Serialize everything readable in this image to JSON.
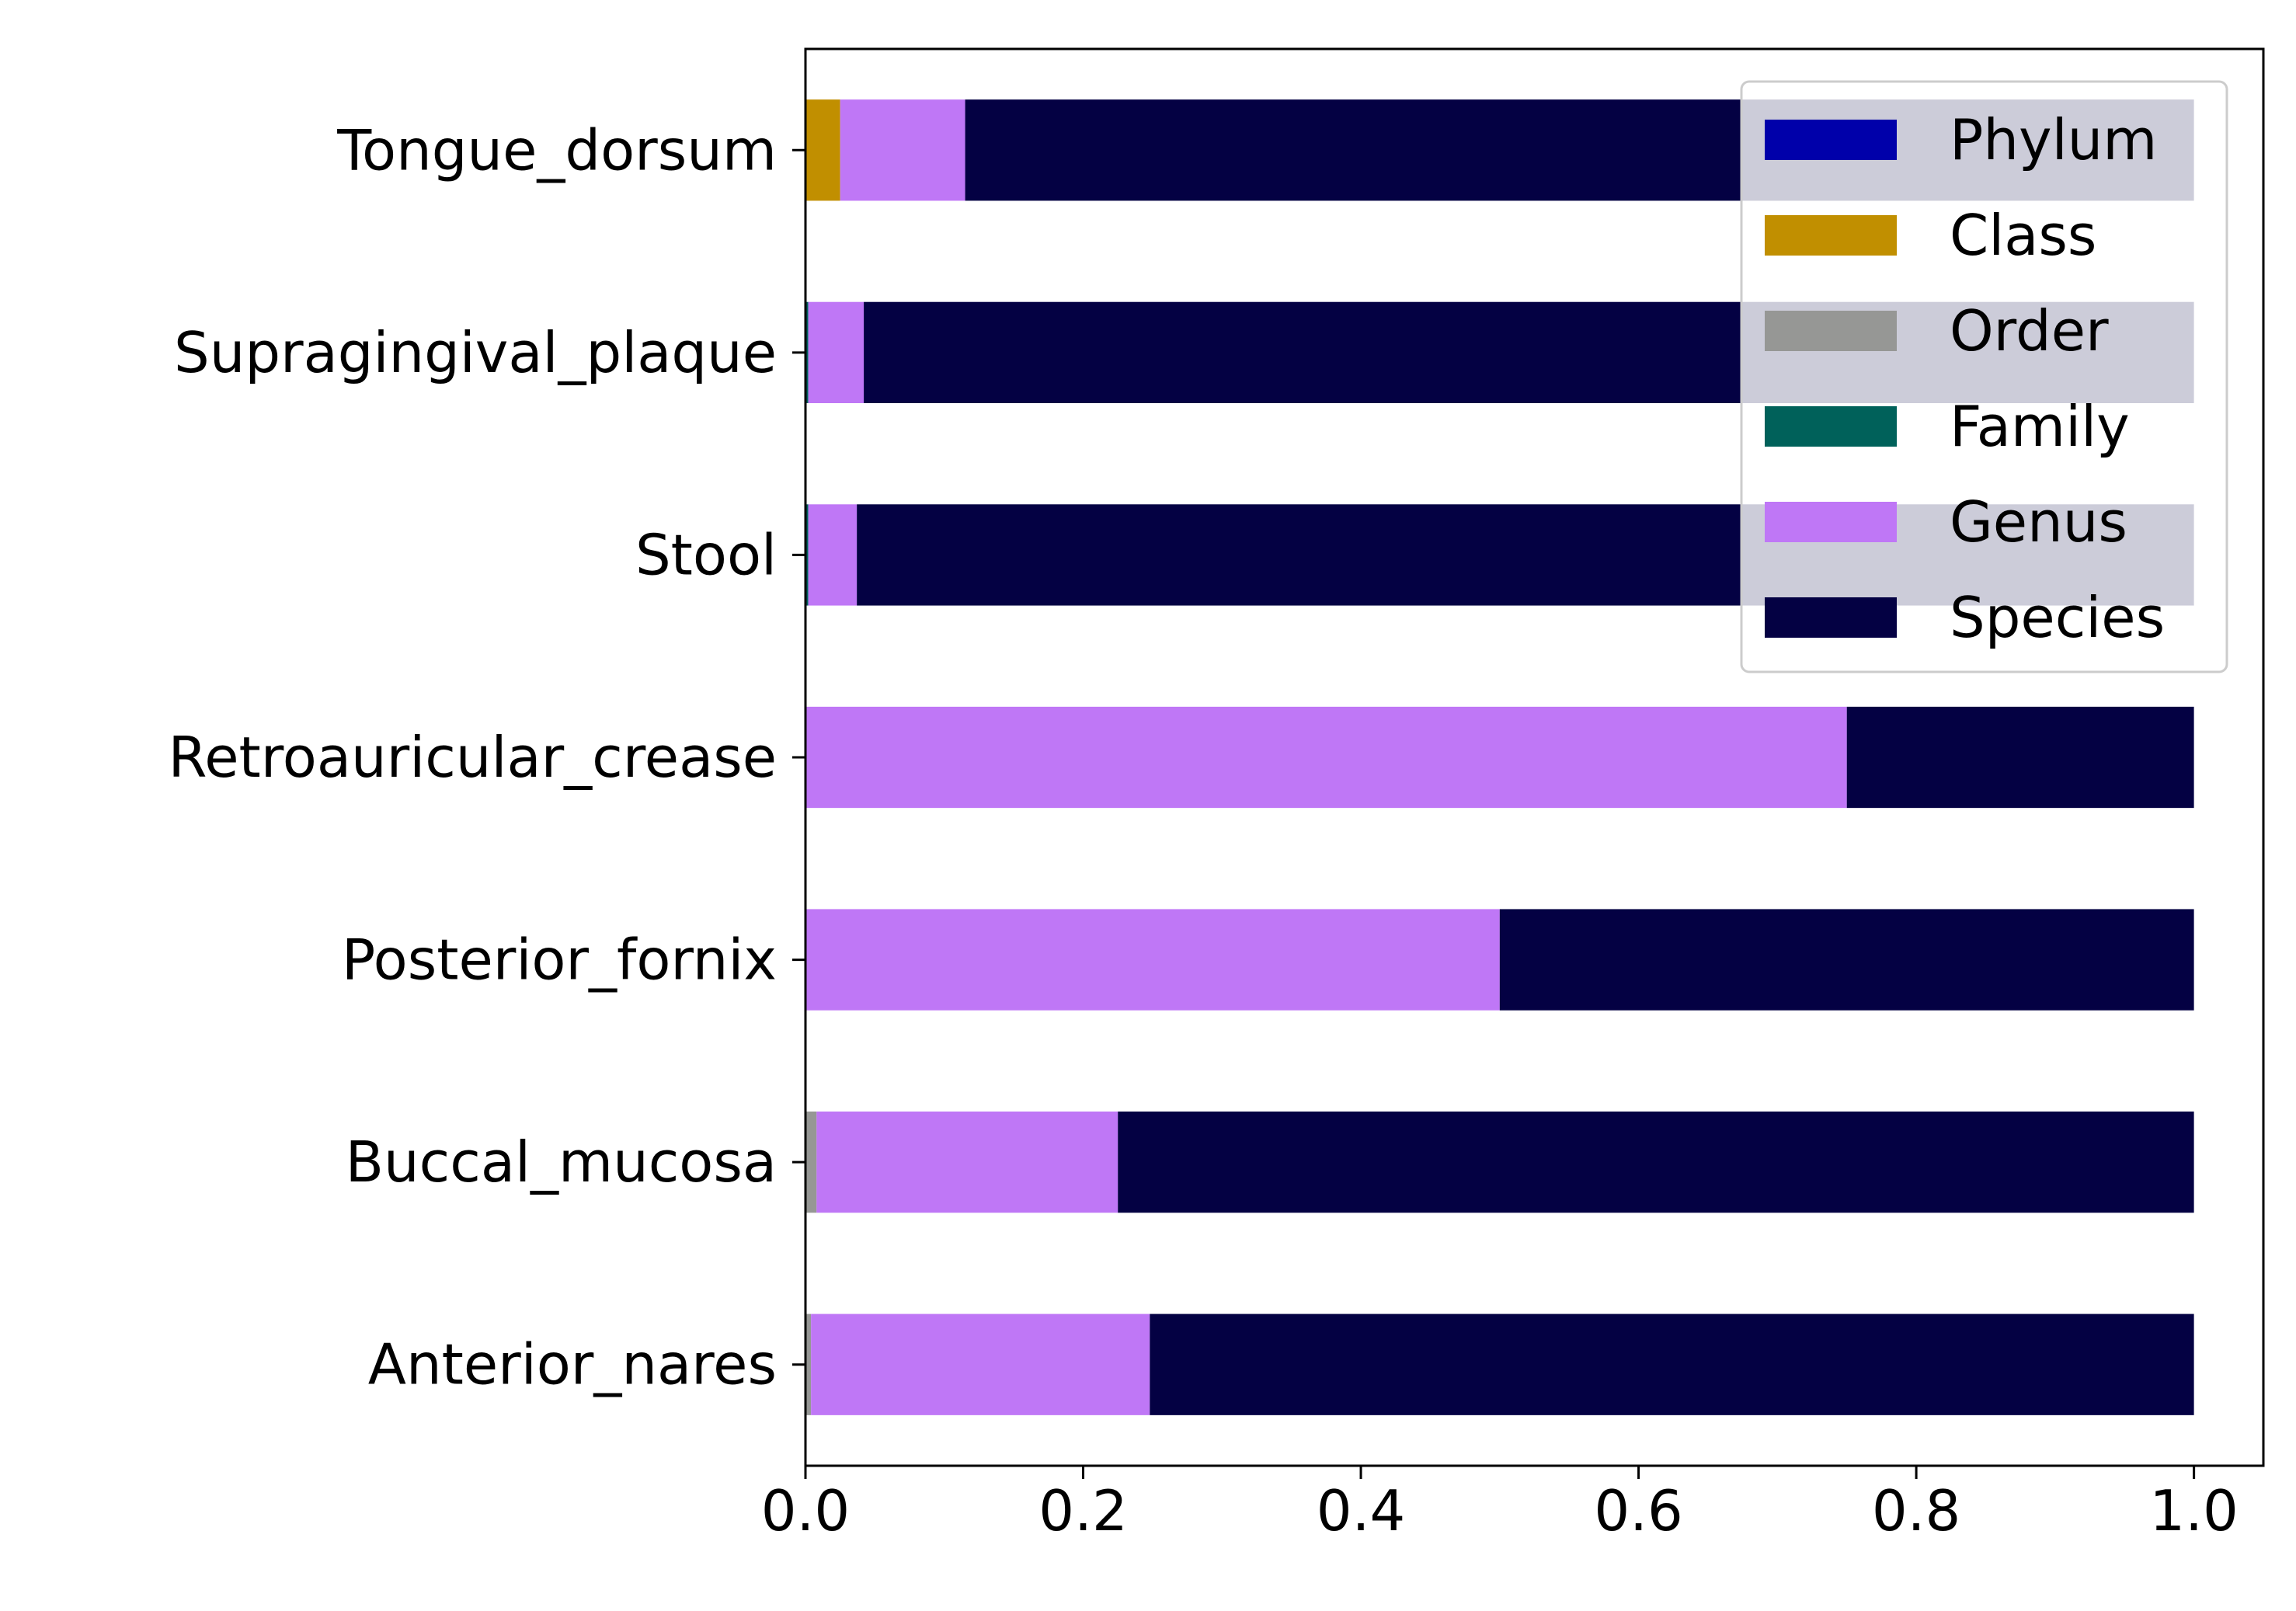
{
  "chart_data": {
    "type": "bar",
    "orientation": "horizontal",
    "stacked": true,
    "title": "",
    "xlabel": "",
    "ylabel": "",
    "xlim": [
      0,
      1.05
    ],
    "x_ticks": [
      "0.0",
      "0.2",
      "0.4",
      "0.6",
      "0.8",
      "1.0"
    ],
    "grid": false,
    "legend_position": "top-right",
    "categories": [
      "Tongue_dorsum",
      "Supragingival_plaque",
      "Stool",
      "Retroauricular_crease",
      "Posterior_fornix",
      "Buccal_mucosa",
      "Anterior_nares"
    ],
    "series": [
      {
        "name": "Phylum",
        "color": "#0000aa",
        "values": [
          0.0,
          0.0,
          0.0,
          0.0,
          0.0,
          0.0,
          0.0
        ]
      },
      {
        "name": "Class",
        "color": "#c18f00",
        "values": [
          0.025,
          0.0,
          0.0,
          0.0,
          0.0,
          0.0,
          0.0
        ]
      },
      {
        "name": "Order",
        "color": "#969795",
        "values": [
          0.0,
          0.0,
          0.0,
          0.0,
          0.0,
          0.008,
          0.004
        ]
      },
      {
        "name": "Family",
        "color": "#00615a",
        "values": [
          0.0,
          0.002,
          0.002,
          0.0,
          0.0,
          0.0,
          0.0
        ]
      },
      {
        "name": "Genus",
        "color": "#bf77f6",
        "values": [
          0.09,
          0.04,
          0.035,
          0.75,
          0.5,
          0.217,
          0.244
        ]
      },
      {
        "name": "Species",
        "color": "#040143",
        "values": [
          0.885,
          0.958,
          0.963,
          0.25,
          0.5,
          0.775,
          0.752
        ]
      }
    ]
  }
}
